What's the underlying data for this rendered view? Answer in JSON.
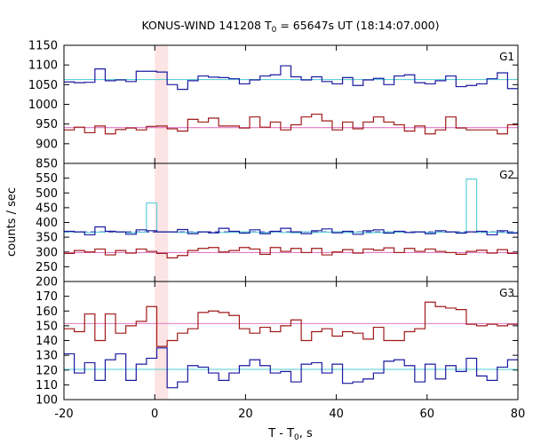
{
  "chart_data": {
    "type": "line",
    "title": {
      "prefix": "KONUS-WIND 141208 T",
      "sub": "0",
      "suffix": " = 65647s UT (18:14:07.000)"
    },
    "xlabel": {
      "prefix": "T - T",
      "sub": "0",
      "suffix": ", s"
    },
    "ylabel": "counts / sec",
    "xlim": [
      -20,
      80
    ],
    "xticks": [
      "-20",
      "0",
      "20",
      "40",
      "60",
      "80"
    ],
    "highlight_band": {
      "x0": 0,
      "x1": 2.944,
      "color": "#fde4e4"
    },
    "panels": [
      {
        "label": "G1",
        "ylim": [
          850,
          1150
        ],
        "yticks": [
          850,
          900,
          950,
          1000,
          1050,
          1100,
          1150
        ],
        "series": [
          {
            "color": "#1a1aa0",
            "background": 1063,
            "background_color": "#5fd0d8",
            "values": [
              1057,
              1055,
              1056,
              1090,
              1060,
              1062,
              1058,
              1084,
              1084,
              1082,
              1050,
              1038,
              1060,
              1072,
              1069,
              1068,
              1065,
              1052,
              1062,
              1072,
              1075,
              1098,
              1070,
              1062,
              1070,
              1058,
              1052,
              1068,
              1048,
              1062,
              1066,
              1050,
              1072,
              1075,
              1055,
              1052,
              1060,
              1072,
              1045,
              1048,
              1052,
              1065,
              1080,
              1040
            ]
          },
          {
            "color": "#a01a1a",
            "background": 941,
            "background_color": "#e07ac8",
            "values": [
              935,
              942,
              928,
              945,
              925,
              936,
              940,
              935,
              944,
              945,
              938,
              932,
              962,
              955,
              965,
              945,
              945,
              940,
              968,
              942,
              955,
              935,
              948,
              968,
              975,
              958,
              935,
              955,
              938,
              955,
              968,
              955,
              948,
              932,
              945,
              925,
              935,
              968,
              940,
              935,
              935,
              935,
              925,
              948
            ]
          }
        ]
      },
      {
        "label": "G2",
        "ylim": [
          200,
          600
        ],
        "yticks": [
          200,
          250,
          300,
          350,
          400,
          450,
          500,
          550
        ],
        "series": [
          {
            "color": "#5fd0d8",
            "background": null,
            "values": [
              368,
              368,
              366,
              367,
              370,
              368,
              365,
              367,
              466,
              368,
              368,
              366,
              367,
              368,
              365,
              366,
              367,
              368,
              367,
              366,
              368,
              366,
              365,
              368,
              366,
              367,
              368,
              366,
              367,
              365,
              366,
              368,
              367,
              366,
              368,
              366,
              367,
              368,
              366,
              547,
              366,
              367,
              366,
              366
            ]
          },
          {
            "color": "#1a1aa0",
            "background": 368,
            "background_color": "#1a1aa0",
            "background_dashed": true,
            "values": [
              370,
              368,
              358,
              385,
              370,
              368,
              360,
              375,
              372,
              368,
              368,
              376,
              362,
              368,
              365,
              380,
              370,
              364,
              375,
              362,
              370,
              380,
              368,
              362,
              372,
              378,
              365,
              370,
              360,
              372,
              375,
              364,
              370,
              366,
              368,
              362,
              372,
              368,
              364,
              368,
              370,
              358,
              372,
              364
            ]
          },
          {
            "color": "#a01a1a",
            "background": 298,
            "background_color": "#e07ac8",
            "values": [
              295,
              305,
              300,
              310,
              290,
              305,
              296,
              310,
              302,
              295,
              280,
              288,
              305,
              312,
              315,
              300,
              305,
              315,
              310,
              292,
              315,
              302,
              312,
              298,
              312,
              290,
              300,
              308,
              296,
              310,
              306,
              314,
              298,
              312,
              302,
              310,
              302,
              298,
              292,
              302,
              306,
              296,
              308,
              295
            ]
          }
        ]
      },
      {
        "label": "G3",
        "ylim": [
          100,
          180
        ],
        "yticks": [
          100,
          110,
          120,
          130,
          140,
          150,
          160,
          170
        ],
        "series": [
          {
            "color": "#a01a1a",
            "background": 151.5,
            "background_color": "#e07ac8",
            "values": [
              148,
              146,
              158,
              140,
              158,
              145,
              150,
              153,
              163,
              136,
              140,
              145,
              148,
              159,
              160,
              159,
              157,
              148,
              145,
              149,
              146,
              150,
              154,
              140,
              146,
              148,
              143,
              146,
              145,
              141,
              149,
              140,
              140,
              146,
              148,
              166,
              163,
              162,
              161,
              151,
              150,
              151,
              150,
              151
            ]
          },
          {
            "color": "#1a1aa0",
            "background": 120.5,
            "background_color": "#5fd0d8",
            "values": [
              131,
              118,
              125,
              113,
              127,
              131,
              113,
              124,
              128,
              135,
              108,
              112,
              123,
              122,
              118,
              113,
              118,
              123,
              127,
              123,
              118,
              119,
              112,
              124,
              125,
              118,
              124,
              111,
              112,
              114,
              118,
              126,
              127,
              123,
              112,
              124,
              114,
              123,
              119,
              128,
              116,
              113,
              122,
              127
            ]
          }
        ]
      }
    ]
  }
}
